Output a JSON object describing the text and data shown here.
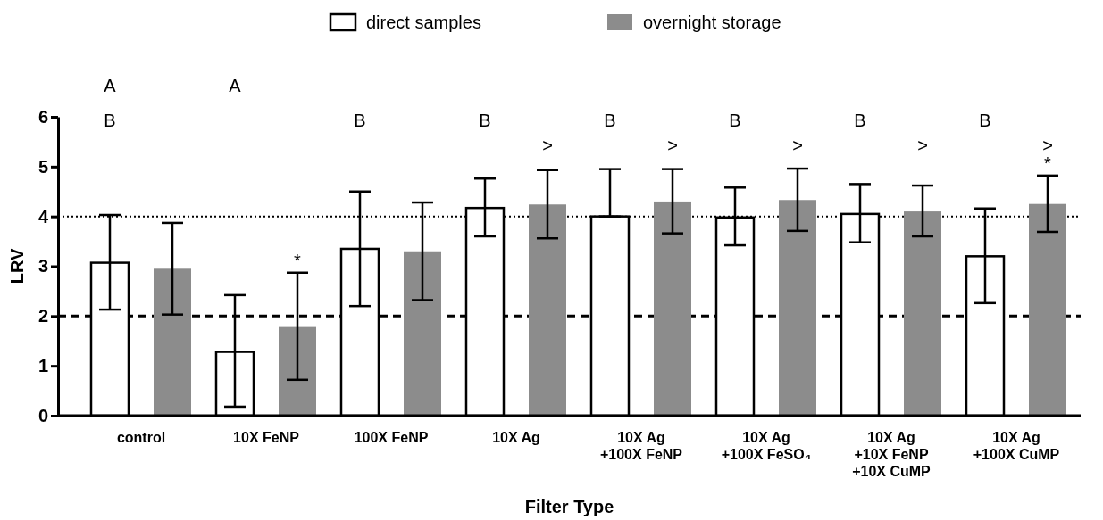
{
  "chart_data": {
    "type": "bar",
    "xlabel": "Filter Type",
    "ylabel": "LRV",
    "categories": [
      "control",
      "10X FeNP",
      "100X FeNP",
      "10X Ag",
      "10X Ag\n+100X FeNP",
      "10X Ag\n+100X FeSO₄",
      "10X Ag\n+10X FeNP\n+10X CuMP",
      "10X Ag\n+100X CuMP"
    ],
    "series": [
      {
        "name": "direct samples",
        "color": "#ffffff",
        "values": [
          3.07,
          1.28,
          3.35,
          4.17,
          4.0,
          3.98,
          4.05,
          3.2
        ],
        "errors": [
          [
            2.13,
            4.03
          ],
          [
            0.18,
            2.42
          ],
          [
            2.2,
            4.5
          ],
          [
            3.6,
            4.76
          ],
          [
            4.0,
            4.95
          ],
          [
            3.42,
            4.58
          ],
          [
            3.48,
            4.65
          ],
          [
            2.26,
            4.16
          ]
        ]
      },
      {
        "name": "overnight storage",
        "color": "#8c8c8c",
        "values": [
          2.95,
          1.78,
          3.3,
          4.24,
          4.3,
          4.33,
          4.1,
          4.25
        ],
        "errors": [
          [
            2.03,
            3.87
          ],
          [
            0.72,
            2.87
          ],
          [
            2.32,
            4.28
          ],
          [
            3.56,
            4.93
          ],
          [
            3.66,
            4.95
          ],
          [
            3.71,
            4.96
          ],
          [
            3.6,
            4.62
          ],
          [
            3.69,
            4.82
          ]
        ]
      }
    ],
    "ylim": [
      0,
      6
    ],
    "yticks": [
      0,
      1,
      2,
      3,
      4,
      5,
      6
    ],
    "grid": false,
    "legend": "top",
    "ref_lines": [
      {
        "axis": "y",
        "value": 4,
        "line_style": "dotted",
        "color": "#000000"
      },
      {
        "axis": "y",
        "value": 2,
        "line_style": "dashed",
        "color": "#000000"
      }
    ],
    "annotations": [
      "A",
      "B",
      "A",
      "*",
      "B",
      "B",
      ">",
      "B",
      ">",
      "B",
      ">",
      "B",
      ">",
      "B",
      ">",
      "*"
    ]
  }
}
